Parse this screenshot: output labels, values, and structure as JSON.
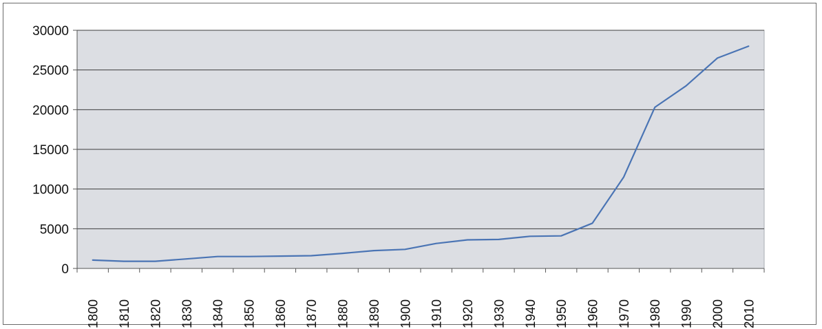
{
  "chart_data": {
    "type": "line",
    "title": "",
    "xlabel": "",
    "ylabel": "",
    "categories": [
      "1800",
      "1810",
      "1820",
      "1830",
      "1840",
      "1850",
      "1860",
      "1870",
      "1880",
      "1890",
      "1900",
      "1910",
      "1920",
      "1930",
      "1940",
      "1950",
      "1960",
      "1970",
      "1980",
      "1990",
      "2000",
      "2010"
    ],
    "series": [
      {
        "values": [
          1050,
          900,
          900,
          1200,
          1500,
          1500,
          1550,
          1600,
          1900,
          2250,
          2400,
          3150,
          3600,
          3650,
          4050,
          4100,
          5700,
          11500,
          20300,
          23000,
          26500,
          28000
        ],
        "color": "#4a74b4"
      }
    ],
    "ylim": [
      0,
      30000
    ],
    "yticks": [
      "0",
      "5000",
      "10000",
      "15000",
      "20000",
      "25000",
      "30000"
    ],
    "grid": true,
    "plot_background": "#dcdee3",
    "legend": "none"
  }
}
